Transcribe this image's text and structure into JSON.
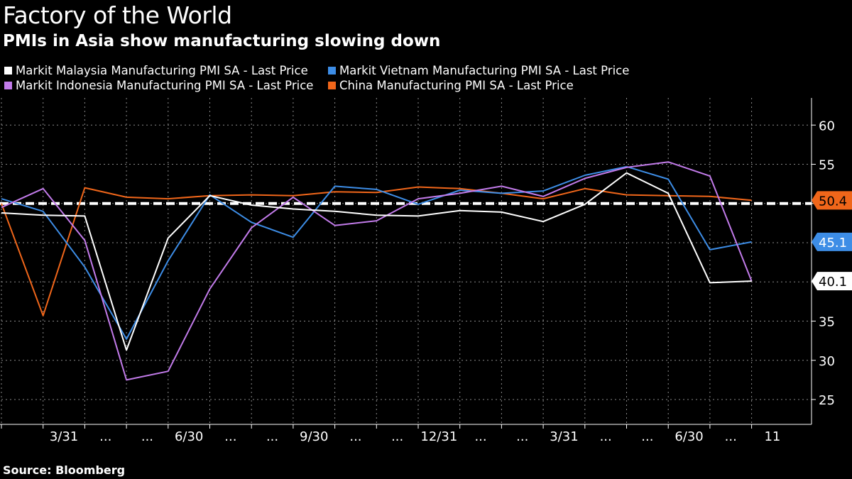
{
  "title": "Factory of the World",
  "subtitle": "PMIs in Asia show manufacturing slowing down",
  "source": "Source: Bloomberg",
  "chart_data": {
    "type": "line",
    "title": "Factory of the World",
    "subtitle": "PMIs in Asia show manufacturing slowing down",
    "xlabel": "",
    "ylabel": "",
    "ylim": [
      22,
      63
    ],
    "yticks": [
      25,
      30,
      35,
      40,
      45,
      50,
      55,
      60
    ],
    "y_axis_side": "right",
    "grid": true,
    "legend_position": "top-left",
    "x_tick_labels": [
      "...",
      "3/31",
      "...",
      "...",
      "6/30",
      "...",
      "...",
      "9/30",
      "...",
      "...",
      "12/31",
      "...",
      "...",
      "3/31",
      "...",
      "...",
      "6/30",
      "...",
      "11"
    ],
    "reference_line": {
      "value": 50,
      "style": "dashed",
      "color": "#ffffff"
    },
    "series": [
      {
        "name": "Markit Malaysia Manufacturing PMI SA - Last Price",
        "color": "#ffffff",
        "values": [
          48.8,
          48.5,
          48.4,
          31.3,
          45.6,
          51.0,
          49.8,
          49.3,
          49.0,
          48.5,
          48.4,
          49.1,
          48.9,
          47.7,
          49.9,
          53.9,
          51.3,
          39.9,
          40.1
        ],
        "last_value_label": "40.1"
      },
      {
        "name": "Markit Vietnam Manufacturing PMI SA - Last Price",
        "color": "#3d8de6",
        "values": [
          50.6,
          49.0,
          41.9,
          32.7,
          42.7,
          51.1,
          47.6,
          45.7,
          52.2,
          51.8,
          49.9,
          51.7,
          51.3,
          51.6,
          53.6,
          54.7,
          53.1,
          44.1,
          45.1
        ],
        "last_value_label": "45.1"
      },
      {
        "name": "Markit Indonesia Manufacturing PMI SA - Last Price",
        "color": "#c27bea",
        "values": [
          49.5,
          51.9,
          45.3,
          27.5,
          28.6,
          39.1,
          46.9,
          50.8,
          47.2,
          47.8,
          50.6,
          51.3,
          52.2,
          50.9,
          53.2,
          54.6,
          55.3,
          53.5,
          40.1
        ],
        "last_value_label": "40.1"
      },
      {
        "name": "China Manufacturing PMI SA - Last Price",
        "color": "#f0661a",
        "values": [
          50.0,
          35.7,
          52.0,
          50.8,
          50.6,
          51.0,
          51.1,
          51.0,
          51.5,
          51.4,
          52.1,
          51.9,
          51.3,
          50.6,
          51.9,
          51.1,
          51.0,
          50.9,
          50.4
        ],
        "last_value_label": "50.4"
      }
    ]
  },
  "legend": [
    {
      "label": "Markit Malaysia Manufacturing PMI SA - Last Price",
      "color": "#ffffff"
    },
    {
      "label": "Markit Vietnam Manufacturing PMI SA - Last Price",
      "color": "#3d8de6"
    },
    {
      "label": "Markit Indonesia Manufacturing PMI SA - Last Price",
      "color": "#c27bea"
    },
    {
      "label": "China Manufacturing PMI SA - Last Price",
      "color": "#f0661a"
    }
  ]
}
